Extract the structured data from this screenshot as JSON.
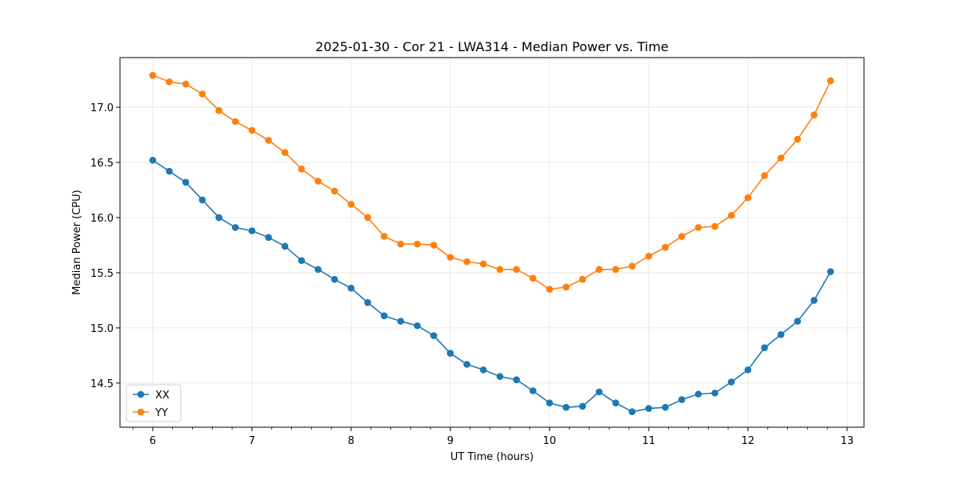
{
  "chart_data": {
    "type": "line",
    "title": "2025-01-30 - Cor 21 - LWA314 - Median Power vs. Time",
    "xlabel": "UT Time (hours)",
    "ylabel": "Median Power (CPU)",
    "xlim": [
      5.67,
      13.17
    ],
    "ylim": [
      14.1,
      17.45
    ],
    "xticks": [
      6,
      7,
      8,
      9,
      10,
      11,
      12,
      13
    ],
    "yticks": [
      14.5,
      15.0,
      15.5,
      16.0,
      16.5,
      17.0
    ],
    "xtick_labels": [
      "6",
      "7",
      "8",
      "9",
      "10",
      "11",
      "12",
      "13"
    ],
    "ytick_labels": [
      "14.5",
      "15.0",
      "15.5",
      "16.0",
      "16.5",
      "17.0"
    ],
    "grid": true,
    "legend_position": "lower-left",
    "x": [
      6.0,
      6.167,
      6.333,
      6.5,
      6.667,
      6.833,
      7.0,
      7.167,
      7.333,
      7.5,
      7.667,
      7.833,
      8.0,
      8.167,
      8.333,
      8.5,
      8.667,
      8.833,
      9.0,
      9.167,
      9.333,
      9.5,
      9.667,
      9.833,
      10.0,
      10.167,
      10.333,
      10.5,
      10.667,
      10.833,
      11.0,
      11.167,
      11.333,
      11.5,
      11.667,
      11.833,
      12.0,
      12.167,
      12.333,
      12.5,
      12.667,
      12.833
    ],
    "series": [
      {
        "name": "XX",
        "color": "#1f77b4",
        "values": [
          16.52,
          16.42,
          16.32,
          16.16,
          16.0,
          15.91,
          15.88,
          15.82,
          15.74,
          15.61,
          15.53,
          15.44,
          15.36,
          15.23,
          15.11,
          15.06,
          15.02,
          14.93,
          14.77,
          14.67,
          14.62,
          14.56,
          14.53,
          14.43,
          14.32,
          14.28,
          14.29,
          14.42,
          14.32,
          14.24,
          14.27,
          14.28,
          14.35,
          14.4,
          14.41,
          14.51,
          14.62,
          14.82,
          14.94,
          15.06,
          15.25,
          15.51
        ]
      },
      {
        "name": "YY",
        "color": "#ff7f0e",
        "values": [
          17.29,
          17.23,
          17.21,
          17.12,
          16.97,
          16.87,
          16.79,
          16.7,
          16.59,
          16.44,
          16.33,
          16.24,
          16.12,
          16.0,
          15.83,
          15.76,
          15.76,
          15.75,
          15.64,
          15.6,
          15.58,
          15.53,
          15.53,
          15.45,
          15.35,
          15.37,
          15.44,
          15.53,
          15.53,
          15.56,
          15.65,
          15.73,
          15.83,
          15.91,
          15.92,
          16.02,
          16.18,
          16.38,
          16.54,
          16.71,
          16.93,
          17.24
        ]
      }
    ]
  }
}
